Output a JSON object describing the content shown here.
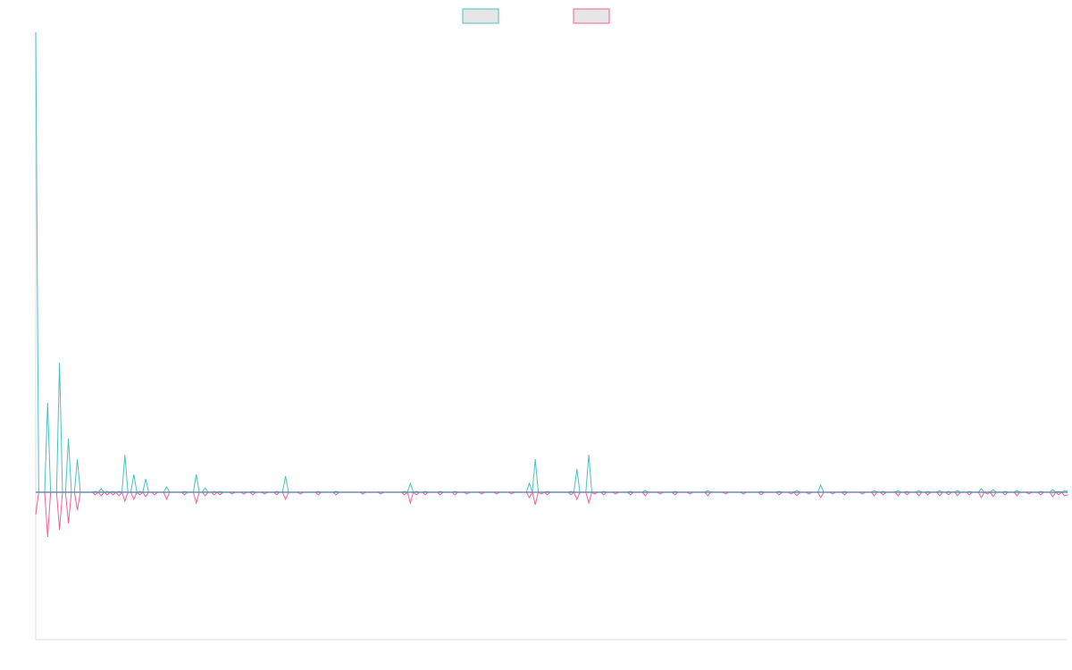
{
  "chart_data": {
    "type": "line",
    "title": "",
    "xlabel": "",
    "ylabel": "",
    "grid": false,
    "legend_position": "top-center",
    "zero_line_color": "#6f8bb0",
    "ylim": [
      -165,
      515
    ],
    "x_count": 348,
    "series": [
      {
        "color": "#4bc0c0",
        "legend_fill": "#e6e6e6",
        "values_sparse": [
          [
            0,
            515
          ],
          [
            4,
            100
          ],
          [
            8,
            145
          ],
          [
            11,
            60
          ],
          [
            14,
            37
          ],
          [
            20,
            1
          ],
          [
            22,
            4
          ],
          [
            24,
            1
          ],
          [
            26,
            1
          ],
          [
            28,
            1
          ],
          [
            30,
            42
          ],
          [
            33,
            20
          ],
          [
            35,
            1
          ],
          [
            37,
            15
          ],
          [
            40,
            0
          ],
          [
            44,
            6
          ],
          [
            50,
            1
          ],
          [
            54,
            20
          ],
          [
            57,
            5
          ],
          [
            60,
            1
          ],
          [
            62,
            1
          ],
          [
            66,
            0
          ],
          [
            70,
            0
          ],
          [
            73,
            1
          ],
          [
            77,
            0
          ],
          [
            81,
            1
          ],
          [
            84,
            18
          ],
          [
            89,
            0
          ],
          [
            95,
            1
          ],
          [
            101,
            1
          ],
          [
            110,
            0
          ],
          [
            116,
            0
          ],
          [
            124,
            1
          ],
          [
            126,
            10
          ],
          [
            128,
            1
          ],
          [
            131,
            1
          ],
          [
            136,
            1
          ],
          [
            141,
            1
          ],
          [
            145,
            0
          ],
          [
            150,
            0
          ],
          [
            155,
            0
          ],
          [
            160,
            0
          ],
          [
            166,
            10
          ],
          [
            168,
            37
          ],
          [
            170,
            0
          ],
          [
            172,
            1
          ],
          [
            180,
            1
          ],
          [
            182,
            26
          ],
          [
            186,
            42
          ],
          [
            188,
            0
          ],
          [
            191,
            1
          ],
          [
            195,
            0
          ],
          [
            200,
            1
          ],
          [
            205,
            2
          ],
          [
            210,
            0
          ],
          [
            215,
            1
          ],
          [
            220,
            0
          ],
          [
            226,
            2
          ],
          [
            232,
            0
          ],
          [
            238,
            0
          ],
          [
            244,
            1
          ],
          [
            250,
            1
          ],
          [
            254,
            0
          ],
          [
            256,
            2
          ],
          [
            260,
            0
          ],
          [
            264,
            8
          ],
          [
            268,
            0
          ],
          [
            272,
            1
          ],
          [
            278,
            0
          ],
          [
            282,
            2
          ],
          [
            285,
            1
          ],
          [
            290,
            2
          ],
          [
            293,
            1
          ],
          [
            297,
            2
          ],
          [
            300,
            1
          ],
          [
            304,
            2
          ],
          [
            307,
            1
          ],
          [
            310,
            2
          ],
          [
            314,
            1
          ],
          [
            318,
            4
          ],
          [
            320,
            0
          ],
          [
            322,
            3
          ],
          [
            326,
            1
          ],
          [
            330,
            2
          ],
          [
            334,
            0
          ],
          [
            338,
            1
          ],
          [
            342,
            3
          ],
          [
            344,
            1
          ],
          [
            346,
            2
          ],
          [
            347,
            1
          ]
        ]
      },
      {
        "color": "#f06292",
        "legend_fill": "#e6e6e6",
        "values_sparse": [
          [
            0,
            -25
          ],
          [
            4,
            -50
          ],
          [
            8,
            -42
          ],
          [
            11,
            -35
          ],
          [
            14,
            -20
          ],
          [
            20,
            -3
          ],
          [
            22,
            -4
          ],
          [
            24,
            -3
          ],
          [
            26,
            -3
          ],
          [
            28,
            -4
          ],
          [
            30,
            -10
          ],
          [
            33,
            -8
          ],
          [
            35,
            -3
          ],
          [
            37,
            -5
          ],
          [
            40,
            -3
          ],
          [
            44,
            -8
          ],
          [
            50,
            -3
          ],
          [
            54,
            -12
          ],
          [
            57,
            -4
          ],
          [
            60,
            -3
          ],
          [
            62,
            -3
          ],
          [
            66,
            -2
          ],
          [
            70,
            -2
          ],
          [
            73,
            -3
          ],
          [
            77,
            -2
          ],
          [
            81,
            -3
          ],
          [
            84,
            -8
          ],
          [
            89,
            -2
          ],
          [
            95,
            -3
          ],
          [
            101,
            -3
          ],
          [
            110,
            -2
          ],
          [
            116,
            -2
          ],
          [
            124,
            -3
          ],
          [
            126,
            -12
          ],
          [
            128,
            -3
          ],
          [
            131,
            -3
          ],
          [
            136,
            -3
          ],
          [
            141,
            -3
          ],
          [
            145,
            -2
          ],
          [
            150,
            -2
          ],
          [
            155,
            -2
          ],
          [
            160,
            -2
          ],
          [
            166,
            -6
          ],
          [
            168,
            -14
          ],
          [
            170,
            -2
          ],
          [
            172,
            -3
          ],
          [
            180,
            -3
          ],
          [
            182,
            -8
          ],
          [
            186,
            -12
          ],
          [
            188,
            -2
          ],
          [
            191,
            -3
          ],
          [
            195,
            -2
          ],
          [
            200,
            -3
          ],
          [
            205,
            -4
          ],
          [
            210,
            -2
          ],
          [
            215,
            -3
          ],
          [
            220,
            -2
          ],
          [
            226,
            -4
          ],
          [
            232,
            -2
          ],
          [
            238,
            -2
          ],
          [
            244,
            -3
          ],
          [
            250,
            -3
          ],
          [
            254,
            -2
          ],
          [
            256,
            -4
          ],
          [
            260,
            -2
          ],
          [
            264,
            -6
          ],
          [
            268,
            -2
          ],
          [
            272,
            -3
          ],
          [
            278,
            -2
          ],
          [
            282,
            -4
          ],
          [
            285,
            -3
          ],
          [
            290,
            -4
          ],
          [
            293,
            -3
          ],
          [
            297,
            -4
          ],
          [
            300,
            -3
          ],
          [
            304,
            -4
          ],
          [
            307,
            -3
          ],
          [
            310,
            -4
          ],
          [
            314,
            -3
          ],
          [
            318,
            -6
          ],
          [
            320,
            -2
          ],
          [
            322,
            -5
          ],
          [
            326,
            -3
          ],
          [
            330,
            -4
          ],
          [
            334,
            -2
          ],
          [
            338,
            -3
          ],
          [
            342,
            -5
          ],
          [
            344,
            -3
          ],
          [
            346,
            -4
          ],
          [
            347,
            -3
          ]
        ]
      }
    ]
  }
}
